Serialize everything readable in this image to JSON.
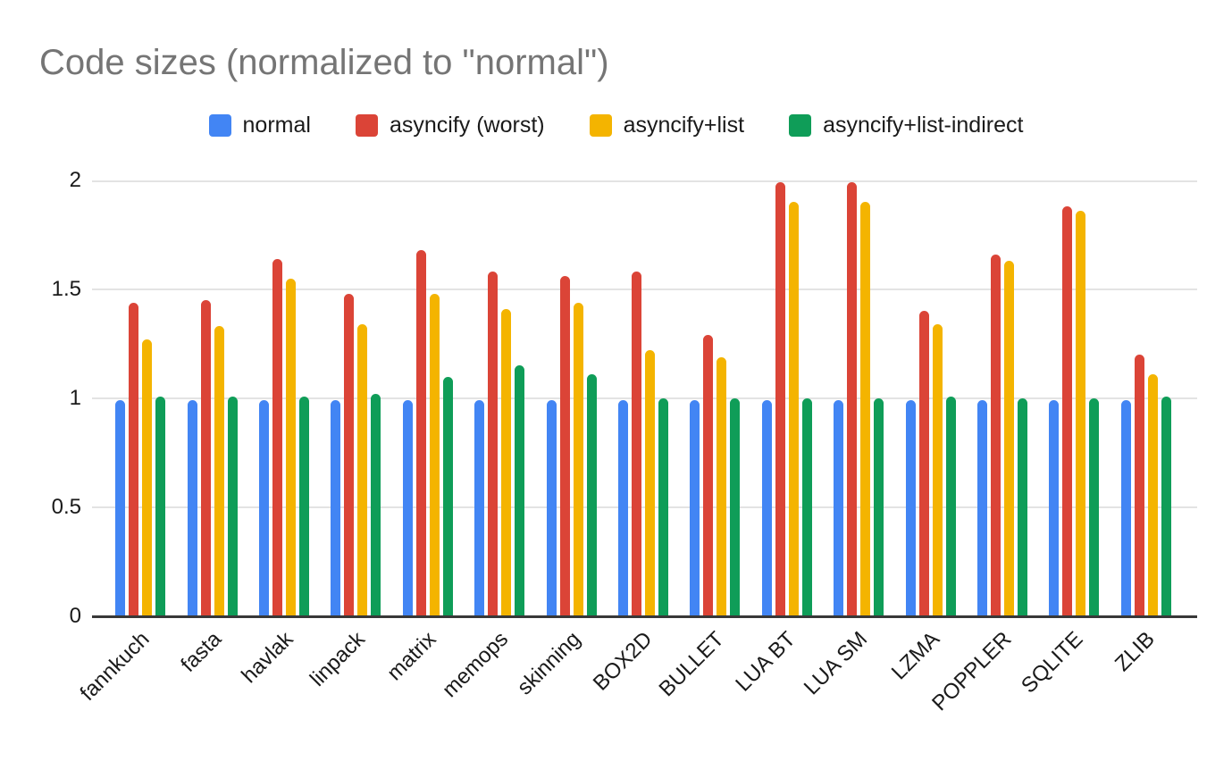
{
  "chart_data": {
    "type": "bar",
    "title": "Code sizes (normalized to \"normal\")",
    "title_color": "#757575",
    "categories": [
      "fannkuch",
      "fasta",
      "havlak",
      "linpack",
      "matrix",
      "memops",
      "skinning",
      "BOX2D",
      "BULLET",
      "LUA BT",
      "LUA SM",
      "LZMA",
      "POPPLER",
      "SQLITE",
      "ZLIB"
    ],
    "series": [
      {
        "name": "normal",
        "color": "#4285F4",
        "values": [
          0.99,
          0.99,
          0.99,
          0.99,
          0.99,
          0.99,
          0.99,
          0.99,
          0.99,
          0.99,
          0.99,
          0.99,
          0.99,
          0.99,
          0.99
        ]
      },
      {
        "name": "asyncify (worst)",
        "color": "#DB4437",
        "values": [
          1.44,
          1.45,
          1.64,
          1.48,
          1.68,
          1.58,
          1.56,
          1.58,
          1.29,
          1.99,
          1.99,
          1.4,
          1.66,
          1.88,
          1.2
        ]
      },
      {
        "name": "asyncify+list",
        "color": "#F4B400",
        "values": [
          1.27,
          1.33,
          1.55,
          1.34,
          1.48,
          1.41,
          1.44,
          1.22,
          1.19,
          1.9,
          1.9,
          1.34,
          1.63,
          1.86,
          1.11
        ]
      },
      {
        "name": "asyncify+list-indirect",
        "color": "#0F9D58",
        "values": [
          1.01,
          1.01,
          1.01,
          1.02,
          1.1,
          1.15,
          1.11,
          1.0,
          1.0,
          1.0,
          1.0,
          1.01,
          1.0,
          1.0,
          1.01
        ]
      }
    ],
    "xlabel": "",
    "ylabel": "",
    "yticks": [
      0,
      0.5,
      1,
      1.5,
      2
    ],
    "ylim": [
      0,
      2
    ],
    "legend_position": "top",
    "grid": true,
    "gridline_color": "#e3e3e3",
    "axis_line_color": "#383838",
    "background": "#ffffff"
  }
}
